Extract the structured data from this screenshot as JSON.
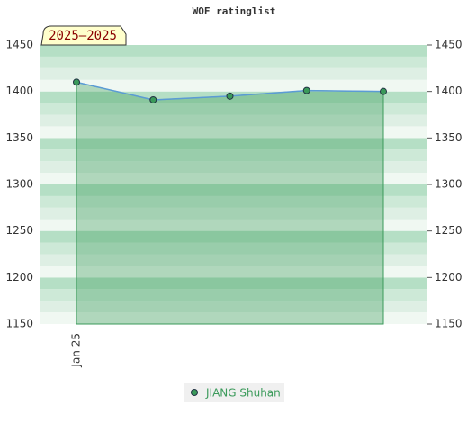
{
  "chart_data": {
    "type": "line",
    "title": "WOF ratinglist",
    "badge": "2025–2025",
    "categories": [
      "Jan 25",
      null,
      null,
      null,
      null
    ],
    "series": [
      {
        "name": "JIANG Shuhan",
        "color": "#3a9a5a",
        "line_color": "#5b9bd5",
        "values": [
          1410,
          1391,
          1395,
          1401,
          1400
        ]
      }
    ],
    "ylim": [
      1150,
      1450
    ],
    "yticks": [
      1150,
      1200,
      1250,
      1300,
      1350,
      1400,
      1450
    ],
    "grid": true
  }
}
